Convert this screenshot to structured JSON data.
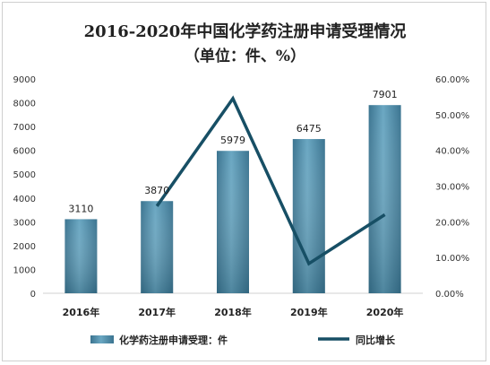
{
  "chart_data": {
    "type": "bar",
    "title": "2016-2020年中国化学药注册申请受理情况",
    "subtitle": "（单位：件、%）",
    "categories": [
      "2016年",
      "2017年",
      "2018年",
      "2019年",
      "2020年"
    ],
    "series": [
      {
        "name": "化学药注册申请受理：件",
        "type": "bar",
        "axis": "left",
        "values": [
          3110,
          3870,
          5979,
          6475,
          7901
        ],
        "color": "#4a86a3"
      },
      {
        "name": "同比增长",
        "type": "line",
        "axis": "right",
        "values": [
          null,
          24.4,
          54.5,
          8.3,
          22.0
        ],
        "color": "#174f65"
      }
    ],
    "ylim": [
      0,
      9000
    ],
    "yticks": [
      0,
      1000,
      2000,
      3000,
      4000,
      5000,
      6000,
      7000,
      8000,
      9000
    ],
    "y2lim": [
      0,
      60
    ],
    "y2ticks": [
      "0.00%",
      "10.00%",
      "20.00%",
      "30.00%",
      "40.00%",
      "50.00%",
      "60.00%"
    ],
    "data_labels": [
      "3110",
      "3870",
      "5979",
      "6475",
      "7901"
    ],
    "legend": "bottom",
    "grid": false
  }
}
